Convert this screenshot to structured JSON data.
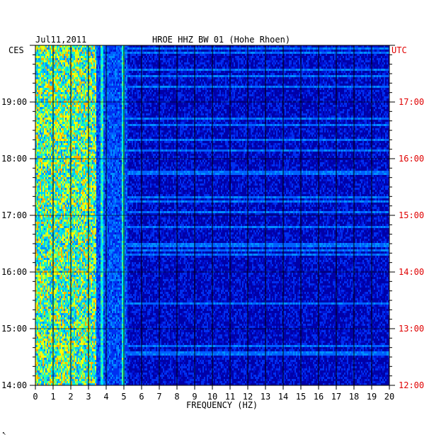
{
  "header": {
    "date": "Jul11,2011",
    "station": "HROE HHZ BW 01 (Hohe Rhoen)",
    "left_tz": "CES",
    "right_tz": "UTC"
  },
  "chart_data": {
    "type": "heatmap",
    "title": "HROE HHZ BW 01 (Hohe Rhoen)",
    "xlabel": "FREQUENCY (HZ)",
    "xlim": [
      0,
      20
    ],
    "x_ticks": [
      "0",
      "1",
      "2",
      "3",
      "4",
      "5",
      "6",
      "7",
      "8",
      "9",
      "10",
      "11",
      "12",
      "13",
      "14",
      "15",
      "16",
      "17",
      "18",
      "19",
      "20"
    ],
    "ylim_local_hours": [
      14,
      20
    ],
    "y_ticks_left": [
      "14:00",
      "15:00",
      "16:00",
      "17:00",
      "18:00",
      "19:00"
    ],
    "y_ticks_right": [
      "12:00",
      "13:00",
      "14:00",
      "15:00",
      "16:00",
      "17:00"
    ],
    "grid": true,
    "colors": {
      "background": "#0000a8",
      "low": "#0044ff",
      "mid": "#00e5ff",
      "high": "#ffff00",
      "peak": "#ff2000",
      "right_axis": "#e00000"
    },
    "features": [
      {
        "freq_range_hz": [
          0,
          3.5
        ],
        "level": "high"
      },
      {
        "freq_hz": 3.7,
        "level": "mid"
      },
      {
        "freq_hz": 4.9,
        "level": "mid"
      }
    ]
  },
  "footer": {
    "mark": "↖"
  }
}
